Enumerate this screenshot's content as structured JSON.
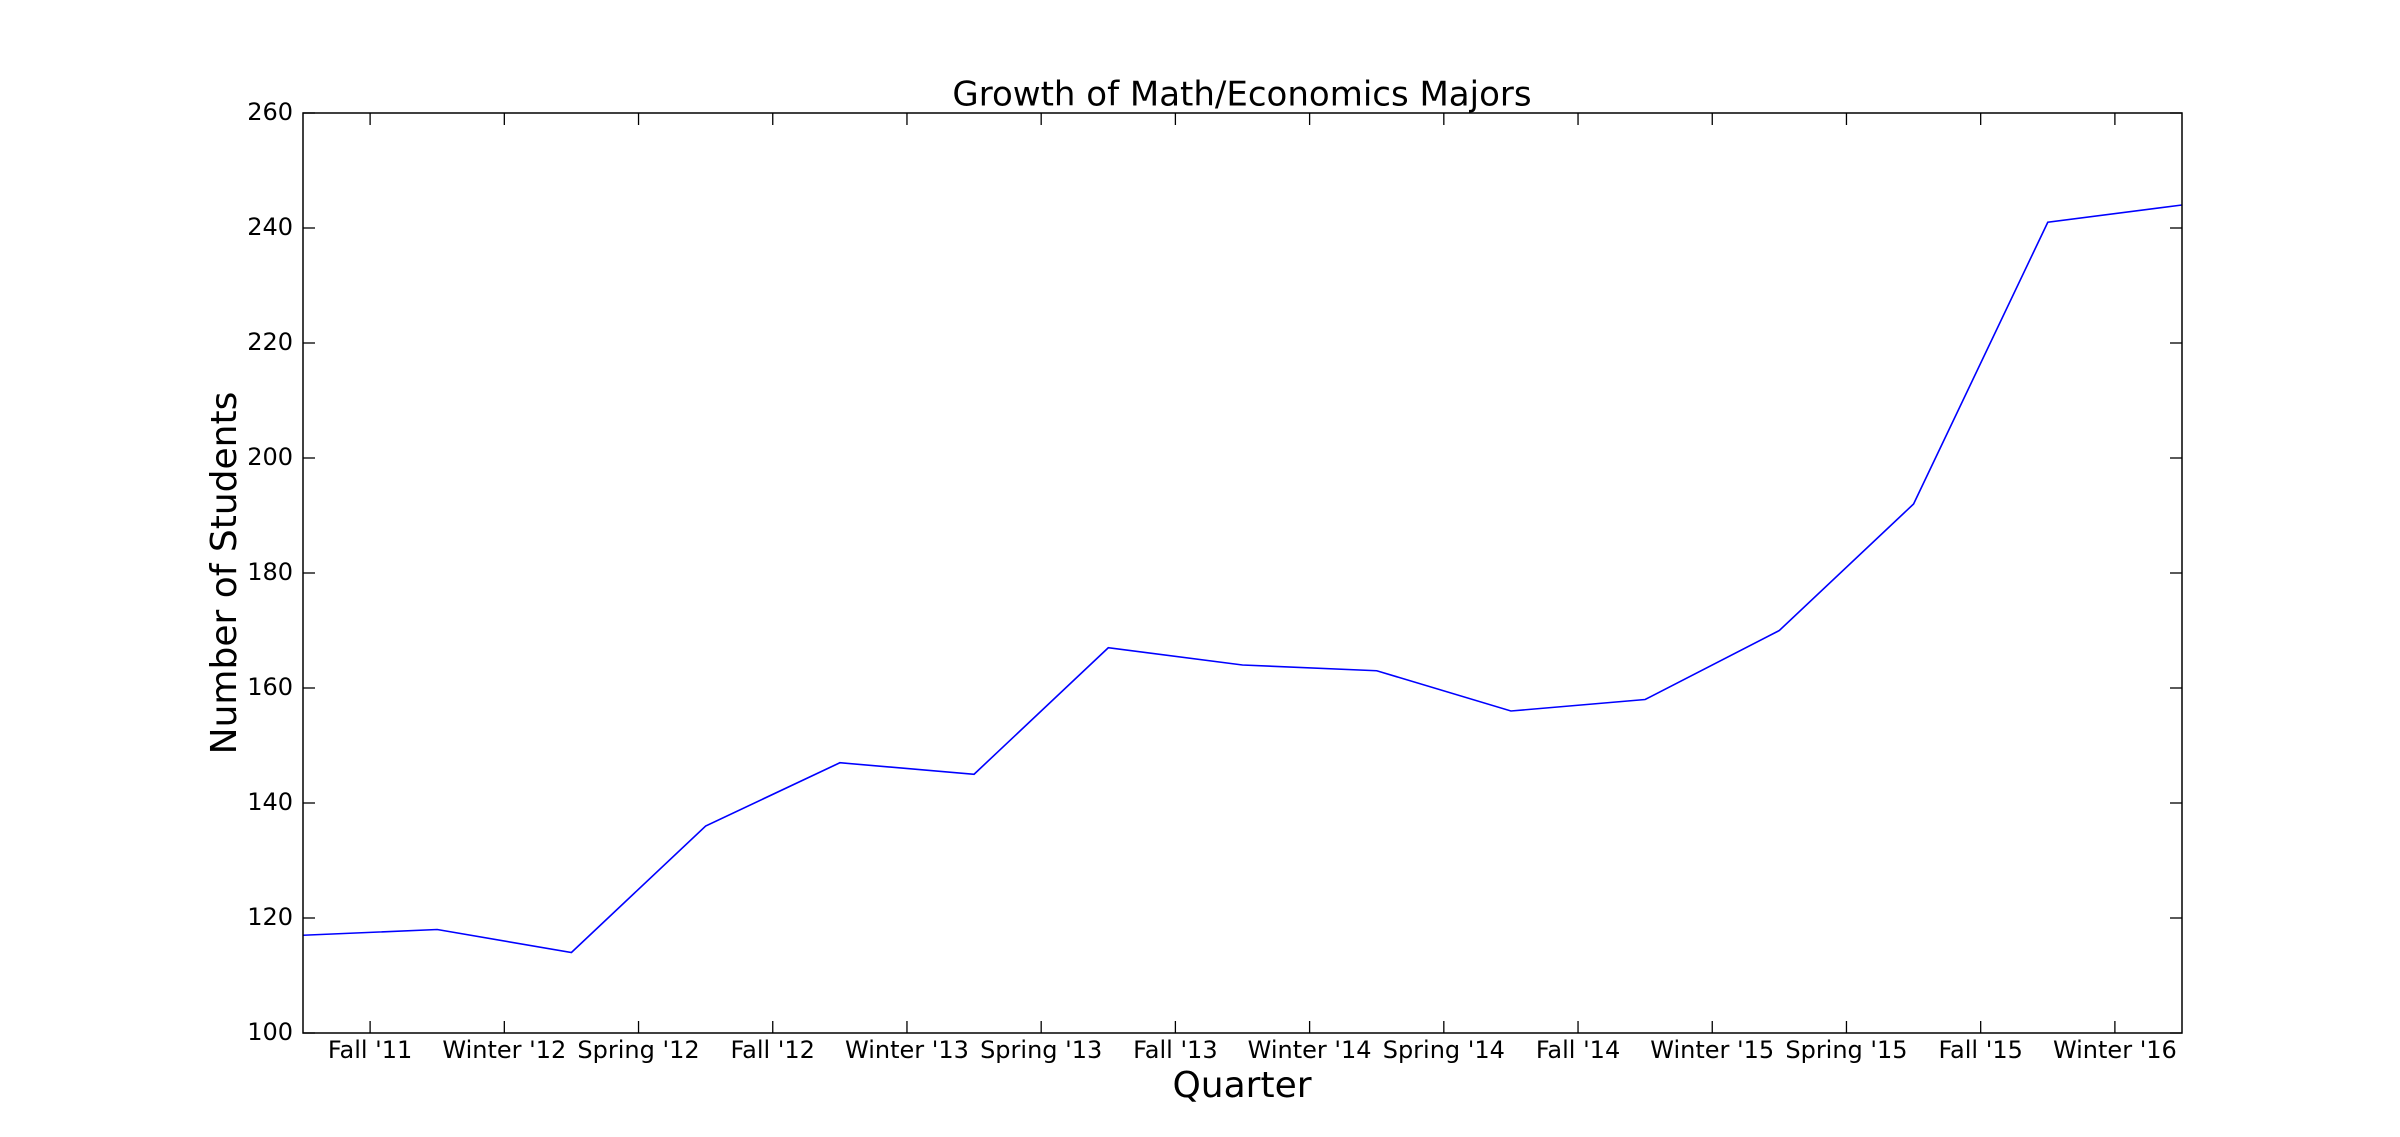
{
  "chart_data": {
    "type": "line",
    "title": "Growth of Math/Economics Majors",
    "xlabel": "Quarter",
    "ylabel": "Number of Students",
    "x": [
      0,
      1,
      2,
      3,
      4,
      5,
      6,
      7,
      8,
      9,
      10,
      11,
      12,
      13,
      14
    ],
    "series": [
      {
        "color": "#0000ff",
        "values": [
          117,
          118,
          114,
          136,
          147,
          145,
          167,
          164,
          163,
          156,
          158,
          170,
          192,
          241,
          244
        ]
      }
    ],
    "xlim": [
      0,
      14
    ],
    "xticks": [
      {
        "value": 0.5,
        "label": "Fall '11"
      },
      {
        "value": 1.5,
        "label": "Winter '12"
      },
      {
        "value": 2.5,
        "label": "Spring '12"
      },
      {
        "value": 3.5,
        "label": "Fall '12"
      },
      {
        "value": 4.5,
        "label": "Winter '13"
      },
      {
        "value": 5.5,
        "label": "Spring '13"
      },
      {
        "value": 6.5,
        "label": "Fall '13"
      },
      {
        "value": 7.5,
        "label": "Winter '14"
      },
      {
        "value": 8.5,
        "label": "Spring '14"
      },
      {
        "value": 9.5,
        "label": "Fall '14"
      },
      {
        "value": 10.5,
        "label": "Winter '15"
      },
      {
        "value": 11.5,
        "label": "Spring '15"
      },
      {
        "value": 12.5,
        "label": "Fall '15"
      },
      {
        "value": 13.5,
        "label": "Winter '16"
      }
    ],
    "ylim": [
      100,
      260
    ],
    "yticks": [
      100,
      120,
      140,
      160,
      180,
      200,
      220,
      240,
      260
    ],
    "grid": false
  }
}
